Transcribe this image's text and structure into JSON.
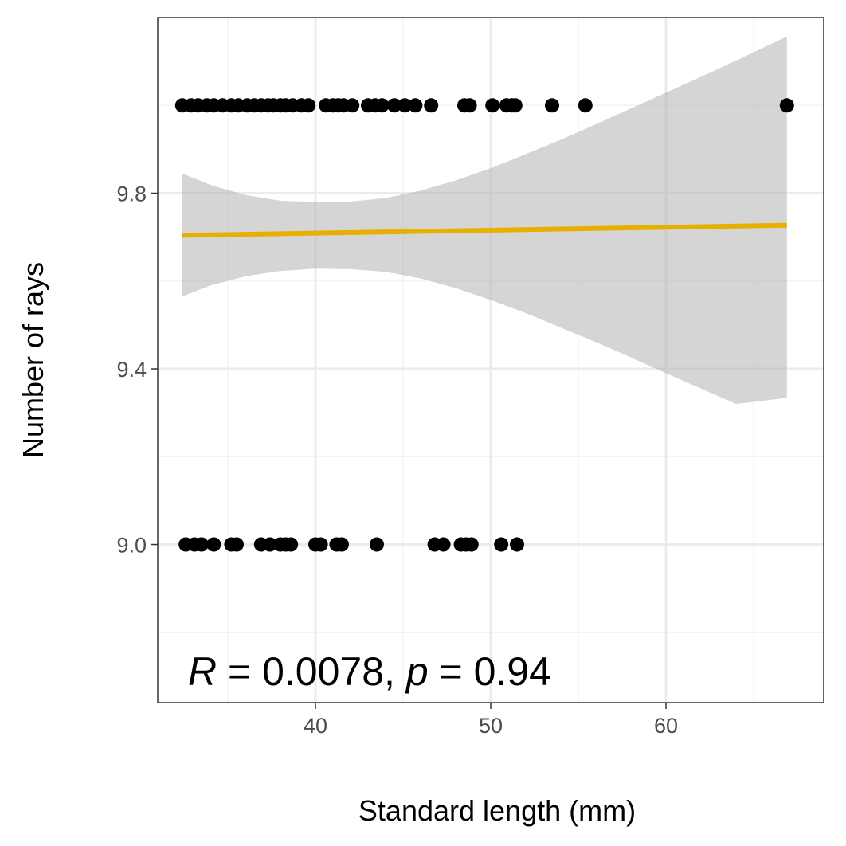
{
  "chart_data": {
    "type": "scatter",
    "title": "",
    "xlabel": "Standard length (mm)",
    "ylabel": "Number of rays",
    "xlim": [
      31.0,
      69.0
    ],
    "ylim": [
      8.64,
      10.2
    ],
    "x_ticks": [
      40,
      50,
      60
    ],
    "x_tick_labels": [
      "40",
      "50",
      "60"
    ],
    "y_ticks": [
      9.0,
      9.4,
      9.8
    ],
    "y_tick_labels": [
      "9.0",
      "9.4",
      "9.8"
    ],
    "grid": true,
    "legend": "none",
    "colors": {
      "points": "#000000",
      "fit_line": "#E6B000",
      "confidence_band": "#d6d6d6",
      "grid_major": "#ebebeb",
      "grid_minor": "#f3f3f3",
      "panel_border": "#333333"
    },
    "series": [
      {
        "x": [
          32.4,
          32.9,
          33.3,
          33.8,
          34.2,
          34.7,
          35.2,
          35.6,
          36.1,
          36.5,
          36.9,
          37.3,
          37.6,
          38.0,
          38.3,
          38.7,
          39.2,
          39.6,
          40.6,
          41.0,
          41.3,
          41.6,
          42.1,
          43.0,
          43.4,
          43.8,
          44.5,
          45.1,
          45.7,
          46.6,
          48.5,
          48.8,
          50.1,
          50.9,
          51.2,
          51.4,
          53.5,
          55.4,
          66.9
        ],
        "y": [
          10,
          10,
          10,
          10,
          10,
          10,
          10,
          10,
          10,
          10,
          10,
          10,
          10,
          10,
          10,
          10,
          10,
          10,
          10,
          10,
          10,
          10,
          10,
          10,
          10,
          10,
          10,
          10,
          10,
          10,
          10,
          10,
          10,
          10,
          10,
          10,
          10,
          10,
          10
        ]
      },
      {
        "x": [
          32.6,
          33.1,
          33.5,
          34.2,
          35.2,
          35.5,
          36.9,
          37.4,
          38.0,
          38.3,
          38.6,
          40.0,
          40.3,
          41.2,
          41.5,
          43.5,
          46.8,
          47.3,
          48.3,
          48.6,
          48.9,
          50.6,
          51.5
        ],
        "y": [
          9,
          9,
          9,
          9,
          9,
          9,
          9,
          9,
          9,
          9,
          9,
          9,
          9,
          9,
          9,
          9,
          9,
          9,
          9,
          9,
          9,
          9,
          9
        ]
      }
    ],
    "fit": {
      "x": [
        32.4,
        66.9
      ],
      "y": [
        9.704,
        9.727
      ]
    },
    "confidence_band": {
      "x": [
        32.4,
        34.0,
        36.0,
        38.0,
        40.0,
        42.0,
        44.0,
        46.0,
        48.0,
        50.0,
        52.0,
        54.0,
        56.0,
        58.0,
        60.0,
        62.0,
        64.0,
        66.9
      ],
      "upper": [
        9.845,
        9.819,
        9.796,
        9.783,
        9.78,
        9.781,
        9.789,
        9.806,
        9.829,
        9.857,
        9.889,
        9.922,
        9.957,
        9.993,
        10.029,
        10.065,
        10.102,
        10.157
      ],
      "lower": [
        9.565,
        9.59,
        9.611,
        9.623,
        9.628,
        9.627,
        9.621,
        9.606,
        9.584,
        9.557,
        9.527,
        9.494,
        9.461,
        9.426,
        9.39,
        9.355,
        9.32,
        9.334
      ]
    },
    "annotation": {
      "r_symbol": "R",
      "r_text": " = 0.0078, ",
      "p_symbol": "p",
      "p_text": " = 0.94"
    }
  }
}
